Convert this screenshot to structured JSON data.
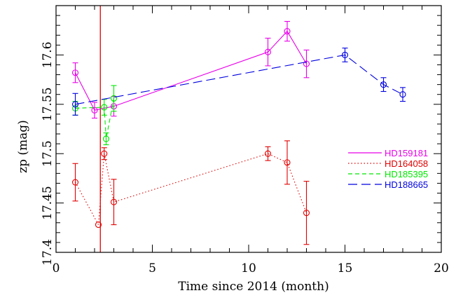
{
  "chart_data": {
    "type": "line",
    "xlabel": "Time since 2014 (month)",
    "ylabel": "zp (mag)",
    "xlim": [
      0,
      20
    ],
    "ylim": [
      17.4,
      17.65
    ],
    "xticks": [
      0,
      5,
      10,
      15,
      20
    ],
    "xtick_labels": [
      "0",
      "5",
      "10",
      "15",
      "20"
    ],
    "yticks": [
      17.4,
      17.45,
      17.5,
      17.55,
      17.6
    ],
    "ytick_labels": [
      "17.4",
      "17.45",
      "17.5",
      "17.55",
      "17.6"
    ],
    "grid": false,
    "legend_position": "right",
    "vline": {
      "x": 2.3,
      "color": "#e00000"
    },
    "series": [
      {
        "name": "HD159181",
        "color": "#e800e8",
        "style": "solid",
        "x": [
          1,
          2,
          3,
          11,
          12,
          13
        ],
        "y": [
          17.582,
          17.544,
          17.548,
          17.603,
          17.624,
          17.591
        ],
        "err": [
          0.01,
          0.008,
          0.01,
          0.014,
          0.01,
          0.014
        ]
      },
      {
        "name": "HD164058",
        "color": "#e00000",
        "style": "dotted",
        "x": [
          1,
          2.2,
          2.5,
          3,
          11,
          12,
          13
        ],
        "y": [
          17.471,
          17.428,
          17.5,
          17.451,
          17.5,
          17.491,
          17.44
        ],
        "err": [
          0.019,
          0,
          0.006,
          0.023,
          0.007,
          0.022,
          0.032
        ]
      },
      {
        "name": "HD185395",
        "color": "#00e800",
        "style": "dashed",
        "x": [
          1,
          2.5,
          2.6,
          3
        ],
        "y": [
          17.546,
          17.547,
          17.515,
          17.556
        ],
        "err": [
          0.007,
          0.008,
          0.006,
          0.013
        ]
      },
      {
        "name": "HD188665",
        "color": "#0000e0",
        "style": "longdash",
        "x": [
          1,
          15,
          17,
          18
        ],
        "y": [
          17.55,
          17.6,
          17.57,
          17.56
        ],
        "err": [
          0.011,
          0.007,
          0.007,
          0.007
        ]
      }
    ]
  }
}
